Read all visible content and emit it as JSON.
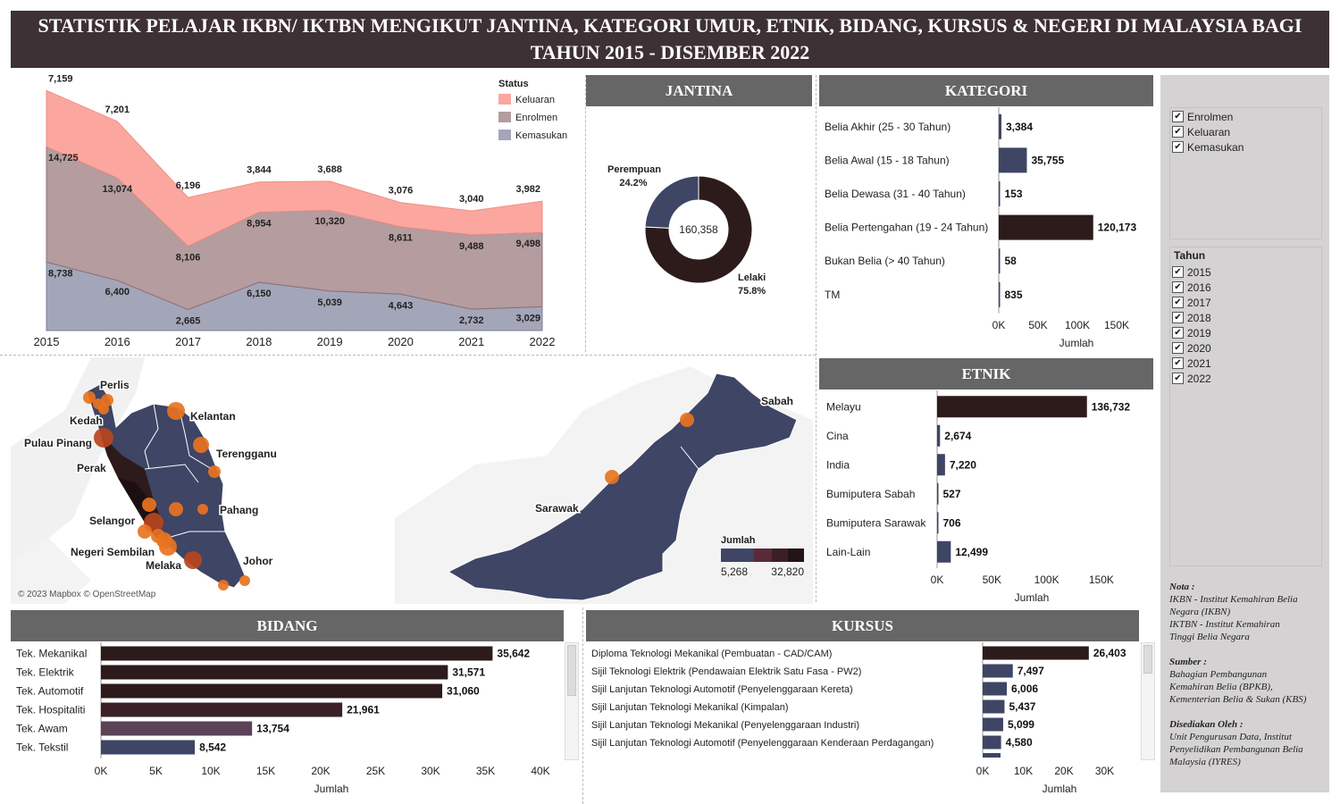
{
  "title": {
    "line1": "STATISTIK PELAJAR IKBN/ IKTBN MENGIKUT JANTINA, KATEGORI UMUR, ETNIK, BIDANG, KURSUS & NEGERI DI MALAYSIA BAGI",
    "line2": "TAHUN 2015 - DISEMBER 2022"
  },
  "headers": {
    "jantina": "JANTINA",
    "kategori": "KATEGORI",
    "etnik": "ETNIK",
    "bidang": "BIDANG",
    "kursus": "KURSUS"
  },
  "colors": {
    "keluaran": "#fba79f",
    "enrolmen": "#b49c9f",
    "kemasukan": "#a3a6b8",
    "dark": "#2d1b1b",
    "navy": "#3e4565",
    "map_land": "#3e4565",
    "map_dot": "#e8731f"
  },
  "chart_data": [
    {
      "id": "status-area",
      "type": "area",
      "x": [
        "2015",
        "2016",
        "2017",
        "2018",
        "2019",
        "2020",
        "2021",
        "2022"
      ],
      "legend_title": "Status",
      "series": [
        {
          "name": "Keluaran",
          "values": [
            7159,
            7201,
            6196,
            3844,
            3688,
            3076,
            3040,
            3982
          ],
          "labels": [
            "7,159",
            "7,201",
            "6,196",
            "3,844",
            "3,688",
            "3,076",
            "3,040",
            "3,982"
          ]
        },
        {
          "name": "Enrolmen",
          "values": [
            14725,
            13074,
            8106,
            8954,
            10320,
            8611,
            9488,
            9498
          ],
          "labels": [
            "14,725",
            "13,074",
            "8,106",
            "8,954",
            "10,320",
            "8,611",
            "9,488",
            "9,498"
          ]
        },
        {
          "name": "Kemasukan",
          "values": [
            8738,
            6400,
            2665,
            6150,
            5039,
            4643,
            2732,
            3029
          ],
          "labels": [
            "8,738",
            "6,400",
            "2,665",
            "6,150",
            "5,039",
            "4,643",
            "2,732",
            "3,029"
          ]
        }
      ]
    },
    {
      "id": "jantina-donut",
      "type": "pie",
      "total": "160,358",
      "slices": [
        {
          "name": "Lelaki",
          "pct": 75.8,
          "pct_label": "75.8%"
        },
        {
          "name": "Perempuan",
          "pct": 24.2,
          "pct_label": "24.2%"
        }
      ]
    },
    {
      "id": "kategori-bar",
      "type": "bar",
      "categories": [
        "Belia Akhir (25 - 30 Tahun)",
        "Belia Awal (15 - 18 Tahun)",
        "Belia Dewasa (31 - 40 Tahun)",
        "Belia Pertengahan (19 - 24 Tahun)",
        "Bukan Belia (> 40 Tahun)",
        "TM"
      ],
      "values": [
        3384,
        35755,
        153,
        120173,
        58,
        835
      ],
      "labels": [
        "3,384",
        "35,755",
        "153",
        "120,173",
        "58",
        "835"
      ],
      "xticks": [
        "0K",
        "50K",
        "100K",
        "150K"
      ],
      "xlabel": "Jumlah",
      "xlim": [
        0,
        150000
      ]
    },
    {
      "id": "etnik-bar",
      "type": "bar",
      "categories": [
        "Melayu",
        "Cina",
        "India",
        "Bumiputera Sabah",
        "Bumiputera Sarawak",
        "Lain-Lain"
      ],
      "values": [
        136732,
        2674,
        7220,
        527,
        706,
        12499
      ],
      "labels": [
        "136,732",
        "2,674",
        "7,220",
        "527",
        "706",
        "12,499"
      ],
      "xticks": [
        "0K",
        "50K",
        "100K",
        "150K"
      ],
      "xlabel": "Jumlah",
      "xlim": [
        0,
        150000
      ]
    },
    {
      "id": "bidang-bar",
      "type": "bar",
      "categories": [
        "Tek. Mekanikal",
        "Tek. Elektrik",
        "Tek. Automotif",
        "Tek. Hospitaliti",
        "Tek. Awam",
        "Tek. Tekstil"
      ],
      "values": [
        35642,
        31571,
        31060,
        21961,
        13754,
        8542
      ],
      "labels": [
        "35,642",
        "31,571",
        "31,060",
        "21,961",
        "13,754",
        "8,542"
      ],
      "xticks": [
        "0K",
        "5K",
        "10K",
        "15K",
        "20K",
        "25K",
        "30K",
        "35K",
        "40K"
      ],
      "xlabel": "Jumlah",
      "xlim": [
        0,
        40000
      ]
    },
    {
      "id": "kursus-bar",
      "type": "bar",
      "categories": [
        "Diploma Teknologi Mekanikal (Pembuatan - CAD/CAM)",
        "Sijil Teknologi Elektrik (Pendawaian Elektrik Satu Fasa - PW2)",
        "Sijil Lanjutan Teknologi Automotif (Penyelenggaraan Kereta)",
        "Sijil Lanjutan Teknologi Mekanikal (Kimpalan)",
        "Sijil Lanjutan Teknologi Mekanikal (Penyelenggaraan Industri)",
        "Sijil Lanjutan Teknologi Automotif (Penyelenggaraan Kenderaan Perdagangan)"
      ],
      "values": [
        26403,
        7497,
        6006,
        5437,
        5099,
        4580
      ],
      "labels": [
        "26,403",
        "7,497",
        "6,006",
        "5,437",
        "5,099",
        "4,580"
      ],
      "xticks": [
        "0K",
        "10K",
        "20K",
        "30K"
      ],
      "xlabel": "Jumlah",
      "xlim": [
        0,
        30000
      ]
    }
  ],
  "map": {
    "states": [
      "Perlis",
      "Kedah",
      "Pulau Pinang",
      "Perak",
      "Kelantan",
      "Terengganu",
      "Pahang",
      "Selangor",
      "Negeri Sembilan",
      "Melaka",
      "Johor",
      "Sabah",
      "Sarawak"
    ],
    "legend_title": "Jumlah",
    "legend_min": "5,268",
    "legend_max": "32,820",
    "attribution": "© 2023 Mapbox © OpenStreetMap"
  },
  "filters": {
    "status": [
      "Enrolmen",
      "Keluaran",
      "Kemasukan"
    ],
    "tahun_title": "Tahun",
    "tahun": [
      "2015",
      "2016",
      "2017",
      "2018",
      "2019",
      "2020",
      "2021",
      "2022"
    ],
    "check": "✔"
  },
  "notes": {
    "nota_title": "Nota :",
    "nota_lines": [
      "IKBN - Institut Kemahiran Belia",
      "Negara (IKBN)",
      "IKTBN - Institut Kemahiran",
      "Tinggi Belia Negara"
    ],
    "sumber_title": "Sumber :",
    "sumber_lines": [
      "Bahagian Pembangunan",
      "Kemahiran Belia (BPKB),",
      "Kementerian Belia & Sukan (KBS)"
    ],
    "disediakan_title": "Disediakan Oleh :",
    "disediakan_lines": [
      "Unit Pengurusan Data, Institut",
      "Penyelidikan Pembangunan Belia",
      "Malaysia (IYRES)"
    ]
  }
}
